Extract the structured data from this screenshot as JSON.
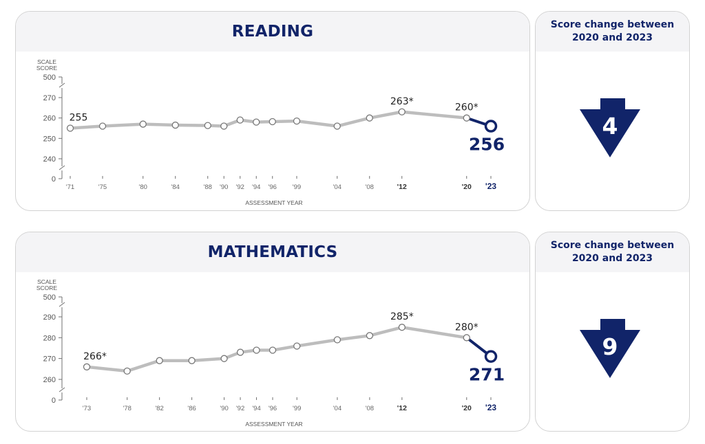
{
  "colors": {
    "navy": "#112469",
    "line": "#bdbdbd",
    "axis": "#6f6f6f",
    "header_bg": "#f4f4f6"
  },
  "reading": {
    "title": "READING",
    "change_header_line1": "Score change between",
    "change_header_line2": "2020 and 2023",
    "change_value": "4",
    "change_direction": "down",
    "arrow_icon": "down-arrow-icon",
    "chart_ylabel_line1": "SCALE",
    "chart_ylabel_line2": "SCORE",
    "chart_xlabel": "ASSESSMENT YEAR"
  },
  "mathematics": {
    "title": "MATHEMATICS",
    "change_header_line1": "Score change between",
    "change_header_line2": "2020 and 2023",
    "change_value": "9",
    "change_direction": "down",
    "arrow_icon": "down-arrow-icon",
    "chart_ylabel_line1": "SCALE",
    "chart_ylabel_line2": "SCORE",
    "chart_xlabel": "ASSESSMENT YEAR"
  },
  "chart_data": [
    {
      "type": "line",
      "title": "READING",
      "ylabel": "SCALE SCORE",
      "xlabel": "ASSESSMENT YEAR",
      "ylim": [
        230,
        275
      ],
      "y_ticks": [
        "500",
        "270",
        "260",
        "250",
        "240",
        "0"
      ],
      "y_tick_values": [
        null,
        270,
        260,
        250,
        240,
        null
      ],
      "axis_breaks": true,
      "x_tick_labels": [
        "'71",
        "'75",
        "'80",
        "'84",
        "'88",
        "'90",
        "'92",
        "'94",
        "'96",
        "'99",
        "'04",
        "'08",
        "'12",
        "'20",
        "'23"
      ],
      "x": [
        1971,
        1975,
        1980,
        1984,
        1988,
        1990,
        1992,
        1994,
        1996,
        1999,
        2004,
        2008,
        2012,
        2020,
        2023
      ],
      "series": [
        {
          "values": [
            255,
            256,
            257,
            256.5,
            256.3,
            256,
            259,
            258,
            258.2,
            258.5,
            256,
            260,
            263,
            260,
            256
          ]
        }
      ],
      "data_labels": [
        {
          "x": 1971,
          "text": "255"
        },
        {
          "x": 2012,
          "text": "263*"
        },
        {
          "x": 2020,
          "text": "260*"
        },
        {
          "x": 2023,
          "text": "256"
        }
      ],
      "bold_x_labels": [
        "'12",
        "'20"
      ],
      "highlight_x_label": "'23"
    },
    {
      "type": "line",
      "title": "MATHEMATICS",
      "ylabel": "SCALE SCORE",
      "xlabel": "ASSESSMENT YEAR",
      "ylim": [
        255,
        295
      ],
      "y_ticks": [
        "500",
        "290",
        "280",
        "270",
        "260",
        "0"
      ],
      "y_tick_values": [
        null,
        290,
        280,
        270,
        260,
        null
      ],
      "axis_breaks": true,
      "x_tick_labels": [
        "'73",
        "'78",
        "'82",
        "'86",
        "'90",
        "'92",
        "'94",
        "'96",
        "'99",
        "'04",
        "'08",
        "'12",
        "'20",
        "'23"
      ],
      "x": [
        1973,
        1978,
        1982,
        1986,
        1990,
        1992,
        1994,
        1996,
        1999,
        2004,
        2008,
        2012,
        2020,
        2023
      ],
      "series": [
        {
          "values": [
            266,
            264,
            269,
            269,
            270,
            273,
            274,
            274,
            276,
            279,
            281,
            285,
            280,
            271
          ]
        }
      ],
      "data_labels": [
        {
          "x": 1973,
          "text": "266*"
        },
        {
          "x": 2012,
          "text": "285*"
        },
        {
          "x": 2020,
          "text": "280*"
        },
        {
          "x": 2023,
          "text": "271"
        }
      ],
      "bold_x_labels": [
        "'12",
        "'20"
      ],
      "highlight_x_label": "'23"
    }
  ]
}
